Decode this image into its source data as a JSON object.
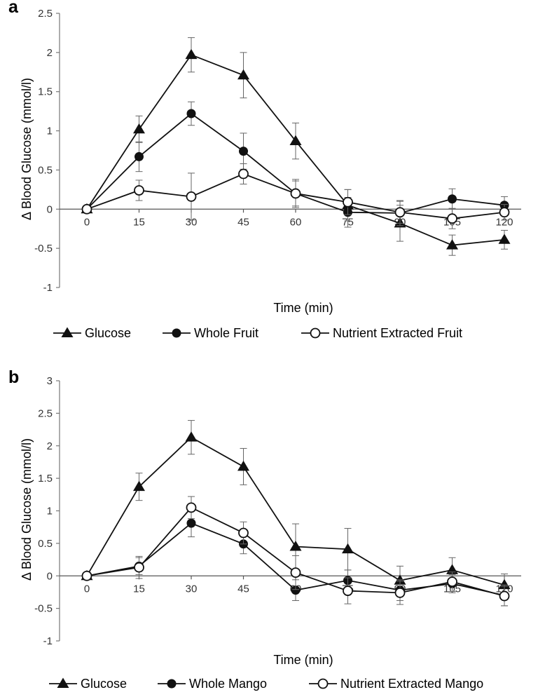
{
  "chart_data": [
    {
      "panel_label": "a",
      "type": "line",
      "xlabel": "Time (min)",
      "ylabel": "Δ Blood Glucose (mmol/l)",
      "categories": [
        "0",
        "15",
        "30",
        "45",
        "60",
        "75",
        "90",
        "105",
        "120"
      ],
      "ylim": [
        -1,
        2.5
      ],
      "yticks": [
        -1,
        -0.5,
        0,
        0.5,
        1,
        1.5,
        2,
        2.5
      ],
      "ytick_labels": [
        "-1",
        "-0.5",
        "0",
        "0.5",
        "1",
        "1.5",
        "2",
        "2.5"
      ],
      "legend_position": "bottom",
      "series": [
        {
          "name": "Glucose",
          "marker": "triangle",
          "values": [
            0,
            1.02,
            1.97,
            1.71,
            0.87,
            0.05,
            -0.18,
            -0.46,
            -0.39
          ],
          "errors": [
            0,
            0.17,
            0.22,
            0.29,
            0.23,
            0.2,
            0.23,
            0.13,
            0.12
          ]
        },
        {
          "name": "Whole Fruit",
          "marker": "filled-circle",
          "values": [
            0,
            0.67,
            1.22,
            0.74,
            0.2,
            -0.04,
            -0.05,
            0.13,
            0.05
          ],
          "errors": [
            0,
            0.19,
            0.15,
            0.23,
            0.18,
            0.19,
            0.16,
            0.13,
            0.11
          ]
        },
        {
          "name": "Nutrient Extracted Fruit",
          "marker": "open-circle",
          "values": [
            0,
            0.24,
            0.16,
            0.45,
            0.2,
            0.09,
            -0.04,
            -0.12,
            -0.04
          ],
          "errors": [
            0,
            0.13,
            0.3,
            0.13,
            0.16,
            0.16,
            0.14,
            0.13,
            0.1
          ]
        }
      ]
    },
    {
      "panel_label": "b",
      "type": "line",
      "xlabel": "Time (min)",
      "ylabel": "Δ Blood Glucose (mmol/l)",
      "categories": [
        "0",
        "15",
        "30",
        "45",
        "60",
        "75",
        "90",
        "105",
        "120"
      ],
      "ylim": [
        -1,
        3
      ],
      "yticks": [
        -1,
        -0.5,
        0,
        0.5,
        1,
        1.5,
        2,
        2.5,
        3
      ],
      "ytick_labels": [
        "-1",
        "-0.5",
        "0",
        "0.5",
        "1",
        "1.5",
        "2",
        "2.5",
        "3"
      ],
      "legend_position": "bottom",
      "series": [
        {
          "name": "Glucose",
          "marker": "triangle",
          "values": [
            0,
            1.37,
            2.13,
            1.68,
            0.45,
            0.41,
            -0.07,
            0.09,
            -0.14
          ],
          "errors": [
            0,
            0.21,
            0.26,
            0.28,
            0.35,
            0.32,
            0.22,
            0.19,
            0.17
          ]
        },
        {
          "name": "Whole Mango",
          "marker": "filled-circle",
          "values": [
            0,
            0.15,
            0.81,
            0.49,
            -0.22,
            -0.07,
            -0.22,
            -0.12,
            -0.3
          ],
          "errors": [
            0,
            0.13,
            0.21,
            0.15,
            0.16,
            0.16,
            0.16,
            0.14,
            0.16
          ]
        },
        {
          "name": "Nutrient Extracted Mango",
          "marker": "open-circle",
          "values": [
            0,
            0.13,
            1.05,
            0.66,
            0.05,
            -0.23,
            -0.26,
            -0.09,
            -0.31
          ],
          "errors": [
            0,
            0.17,
            0.17,
            0.17,
            0.26,
            0.2,
            0.18,
            0.15,
            0.15
          ]
        }
      ]
    }
  ]
}
